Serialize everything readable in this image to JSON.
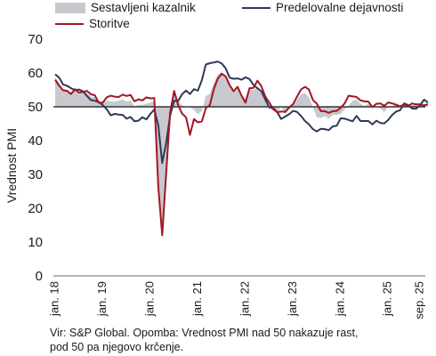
{
  "chart_data": {
    "type": "line",
    "ylabel": "Vrednost PMI",
    "ylim": [
      0,
      70
    ],
    "yticks": [
      0,
      10,
      20,
      30,
      40,
      50,
      60,
      70
    ],
    "reference_line": 50,
    "grid": false,
    "legend_position": "top",
    "x_start": "2018-01",
    "x_end": "2025-09",
    "x_tick_labels": [
      "jan. 18",
      "jan. 19",
      "jan. 20",
      "jan. 21",
      "jan. 22",
      "jan. 23",
      "jan. 24",
      "jan. 25",
      "sep. 25"
    ],
    "x_tick_dates": [
      "2018-01",
      "2019-01",
      "2020-01",
      "2021-01",
      "2022-01",
      "2023-01",
      "2024-01",
      "2025-01",
      "2025-09"
    ],
    "series": [
      {
        "name": "Sestavljeni kazalnik",
        "style": "area",
        "color": "#c7c9cf",
        "values": [
          58.8,
          57.1,
          55.2,
          55.1,
          54.1,
          54.9,
          54.3,
          54.5,
          54.1,
          53.1,
          52.7,
          51.1,
          51.0,
          51.9,
          51.6,
          51.5,
          51.8,
          52.2,
          51.5,
          51.9,
          50.1,
          50.6,
          50.6,
          50.9,
          51.3,
          51.6,
          29.7,
          13.6,
          31.9,
          48.5,
          54.9,
          51.9,
          50.4,
          50.0,
          49.8,
          49.1,
          47.8,
          48.8,
          53.2,
          53.8,
          57.1,
          59.5,
          60.2,
          59.0,
          56.2,
          54.2,
          55.4,
          53.3,
          52.3,
          55.5,
          54.9,
          55.8,
          54.8,
          53.6,
          49.9,
          48.9,
          48.1,
          50.0,
          47.8,
          49.3,
          50.3,
          52.0,
          53.7,
          54.1,
          52.8,
          49.9,
          46.9,
          46.7,
          47.2,
          46.5,
          47.6,
          47.6,
          47.9,
          49.2,
          50.3,
          51.7,
          52.2,
          50.9,
          50.2,
          51.0,
          50.0,
          50.0,
          49.6,
          48.3,
          50.2,
          50.2,
          50.9,
          50.4,
          50.9,
          50.1,
          50.5,
          51.0,
          51.0,
          50.5,
          51.0
        ]
      },
      {
        "name": "Predelovalne dejavnosti",
        "style": "line",
        "color": "#2e3a5c",
        "values": [
          59.6,
          58.6,
          56.6,
          56.2,
          55.5,
          54.9,
          55.1,
          54.6,
          53.2,
          52.0,
          51.8,
          51.4,
          50.5,
          49.3,
          47.5,
          47.9,
          47.7,
          47.6,
          46.5,
          47.0,
          45.7,
          45.9,
          46.9,
          46.3,
          47.9,
          49.2,
          44.5,
          33.4,
          39.4,
          47.4,
          51.8,
          51.7,
          53.7,
          54.8,
          53.8,
          55.2,
          54.8,
          57.9,
          62.5,
          62.9,
          63.1,
          63.4,
          62.8,
          61.4,
          58.6,
          58.3,
          58.4,
          58.0,
          58.7,
          58.2,
          56.5,
          55.5,
          54.6,
          52.1,
          49.8,
          49.6,
          48.4,
          46.4,
          47.1,
          47.8,
          48.8,
          48.5,
          47.3,
          45.8,
          44.8,
          43.4,
          42.7,
          43.5,
          43.4,
          43.1,
          44.2,
          44.4,
          46.6,
          46.5,
          46.1,
          45.7,
          47.3,
          45.8,
          45.8,
          45.8,
          44.8,
          45.9,
          45.2,
          45.1,
          46.1,
          47.6,
          48.6,
          49.0,
          51.0,
          50.5,
          49.5,
          49.4,
          50.4,
          52.1,
          51.3
        ]
      },
      {
        "name": "Storitve",
        "style": "line",
        "color": "#a31622",
        "values": [
          58.0,
          56.2,
          54.9,
          54.7,
          53.8,
          55.2,
          54.2,
          54.4,
          54.7,
          53.7,
          53.4,
          51.2,
          51.2,
          52.8,
          53.3,
          53.0,
          52.9,
          53.6,
          53.2,
          53.5,
          51.6,
          52.2,
          51.9,
          52.8,
          52.5,
          52.6,
          26.4,
          12.0,
          30.5,
          48.3,
          54.7,
          50.5,
          48.0,
          46.9,
          41.7,
          46.4,
          45.4,
          45.7,
          49.6,
          50.5,
          55.2,
          58.3,
          59.8,
          59.0,
          56.4,
          54.6,
          55.9,
          53.3,
          51.2,
          55.5,
          55.6,
          57.7,
          56.1,
          53.0,
          51.2,
          49.3,
          48.4,
          48.6,
          48.5,
          49.8,
          50.8,
          53.0,
          55.1,
          55.9,
          55.1,
          52.0,
          50.9,
          48.7,
          48.7,
          48.2,
          48.7,
          48.8,
          49.7,
          51.0,
          53.3,
          53.1,
          52.9,
          51.9,
          51.6,
          51.5,
          49.9,
          50.9,
          51.0,
          50.3,
          51.3,
          51.0,
          50.6,
          50.1,
          50.7,
          50.2,
          51.0,
          50.7,
          50.7,
          50.4,
          50.8
        ]
      }
    ]
  },
  "note": {
    "line1": "Vir: S&P Global. Opomba: Vrednost PMI nad 50 nakazuje rast,",
    "line2": "pod 50 pa njegovo krčenje."
  }
}
